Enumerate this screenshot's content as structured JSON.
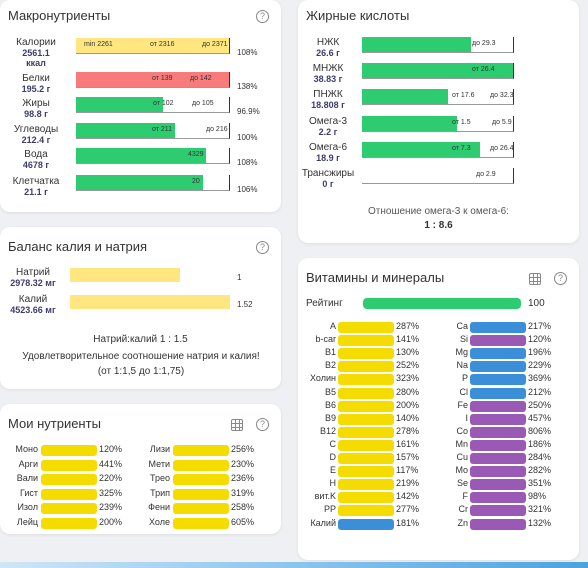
{
  "macros": {
    "title": "Макронутриенты",
    "rows": [
      {
        "name": "Калории",
        "value": "2561.1",
        "unit": "ккал",
        "marks": [
          "min 2261",
          "от 2316",
          "до 2371"
        ],
        "pct": "108%",
        "color": "#ffe680",
        "fill": 1.0
      },
      {
        "name": "Белки",
        "value": "195.2 г",
        "marks": [
          "от 139",
          "до 142"
        ],
        "pct": "138%",
        "color": "#f77b7b",
        "fill": 1.0
      },
      {
        "name": "Жиры",
        "value": "98.8 г",
        "marks": [
          "от 102",
          "до 105"
        ],
        "pct": "96.9%",
        "color": "#2ecc71",
        "fill": 0.57
      },
      {
        "name": "Углеводы",
        "value": "212.4 г",
        "marks": [
          "от 211",
          "до 216"
        ],
        "pct": "100%",
        "color": "#2ecc71",
        "fill": 0.65
      },
      {
        "name": "Вода",
        "value": "4678 г",
        "marks": [
          "4329"
        ],
        "pct": "108%",
        "color": "#2ecc71",
        "fill": 0.85
      },
      {
        "name": "Клетчатка",
        "value": "21.1 г",
        "marks": [
          "20"
        ],
        "pct": "106%",
        "color": "#2ecc71",
        "fill": 0.83
      }
    ]
  },
  "fatty": {
    "title": "Жирные кислоты",
    "rows": [
      {
        "name": "НЖК",
        "value": "26.6 г",
        "marks": [
          "до 29.3"
        ],
        "fill": 0.72
      },
      {
        "name": "МНЖК",
        "value": "38.83 г",
        "marks": [
          "от 26.4"
        ],
        "fill": 1.0
      },
      {
        "name": "ПНЖК",
        "value": "18.808 г",
        "marks": [
          "от 17.6",
          "до 32.3"
        ],
        "fill": 0.57
      },
      {
        "name": "Омега-3",
        "value": "2.2 г",
        "marks": [
          "от 1.5",
          "до 5.9"
        ],
        "fill": 0.63
      },
      {
        "name": "Омега-6",
        "value": "18.9 г",
        "marks": [
          "от 7.3",
          "до 26.4"
        ],
        "fill": 0.78
      },
      {
        "name": "Трансжиры",
        "value": "0 г",
        "marks": [
          "до 2.9"
        ],
        "fill": 0.0
      }
    ],
    "ratio_label": "Отношение омега-3 к омега-6:",
    "ratio_value": "1 : 8.6"
  },
  "balance": {
    "title": "Баланс калия и натрия",
    "rows": [
      {
        "name": "Натрий",
        "value": "2978.32 мг",
        "num": "1",
        "fill": 0.69
      },
      {
        "name": "Калий",
        "value": "4523.66 мг",
        "num": "1.52",
        "fill": 1.0
      }
    ],
    "ratio_text": "Натрий:калий 1 : 1.5",
    "desc": "Удовлетворительное соотношение натрия и калия! (от 1:1,5 до 1:1,75)"
  },
  "vitamins": {
    "title": "Витамины и минералы",
    "rating_label": "Рейтинг",
    "rating_value": "100",
    "left": [
      {
        "name": "A",
        "pct": "287%",
        "color": "#f5dc00"
      },
      {
        "name": "b-car",
        "pct": "141%",
        "color": "#f5dc00"
      },
      {
        "name": "B1",
        "pct": "130%",
        "color": "#f5dc00"
      },
      {
        "name": "B2",
        "pct": "252%",
        "color": "#f5dc00"
      },
      {
        "name": "Холин",
        "pct": "323%",
        "color": "#f5dc00"
      },
      {
        "name": "B5",
        "pct": "280%",
        "color": "#f5dc00"
      },
      {
        "name": "B6",
        "pct": "200%",
        "color": "#f5dc00"
      },
      {
        "name": "B9",
        "pct": "140%",
        "color": "#f5dc00"
      },
      {
        "name": "B12",
        "pct": "278%",
        "color": "#f5dc00"
      },
      {
        "name": "C",
        "pct": "161%",
        "color": "#f5dc00"
      },
      {
        "name": "D",
        "pct": "157%",
        "color": "#f5dc00"
      },
      {
        "name": "E",
        "pct": "117%",
        "color": "#f5dc00"
      },
      {
        "name": "H",
        "pct": "219%",
        "color": "#f5dc00"
      },
      {
        "name": "вит.K",
        "pct": "142%",
        "color": "#f5dc00"
      },
      {
        "name": "PP",
        "pct": "277%",
        "color": "#f5dc00"
      },
      {
        "name": "Калий",
        "pct": "181%",
        "color": "#3a8fd8"
      }
    ],
    "right": [
      {
        "name": "Ca",
        "pct": "217%",
        "color": "#3a8fd8"
      },
      {
        "name": "Si",
        "pct": "120%",
        "color": "#9b59b6"
      },
      {
        "name": "Mg",
        "pct": "196%",
        "color": "#3a8fd8"
      },
      {
        "name": "Na",
        "pct": "229%",
        "color": "#3a8fd8"
      },
      {
        "name": "P",
        "pct": "369%",
        "color": "#3a8fd8"
      },
      {
        "name": "Cl",
        "pct": "212%",
        "color": "#3a8fd8"
      },
      {
        "name": "Fe",
        "pct": "250%",
        "color": "#9b59b6"
      },
      {
        "name": "I",
        "pct": "457%",
        "color": "#9b59b6"
      },
      {
        "name": "Co",
        "pct": "806%",
        "color": "#9b59b6"
      },
      {
        "name": "Mn",
        "pct": "186%",
        "color": "#9b59b6"
      },
      {
        "name": "Cu",
        "pct": "284%",
        "color": "#9b59b6"
      },
      {
        "name": "Mo",
        "pct": "282%",
        "color": "#9b59b6"
      },
      {
        "name": "Se",
        "pct": "351%",
        "color": "#9b59b6"
      },
      {
        "name": "F",
        "pct": "98%",
        "color": "#9b59b6"
      },
      {
        "name": "Cr",
        "pct": "321%",
        "color": "#9b59b6"
      },
      {
        "name": "Zn",
        "pct": "132%",
        "color": "#9b59b6"
      }
    ]
  },
  "my": {
    "title": "Мои нутриенты",
    "left": [
      {
        "name": "Моно",
        "pct": "120%"
      },
      {
        "name": "Арги",
        "pct": "441%"
      },
      {
        "name": "Вали",
        "pct": "220%"
      },
      {
        "name": "Гист",
        "pct": "325%"
      },
      {
        "name": "Изол",
        "pct": "239%"
      },
      {
        "name": "Лейц",
        "pct": "200%"
      }
    ],
    "right": [
      {
        "name": "Лизи",
        "pct": "256%"
      },
      {
        "name": "Мети",
        "pct": "230%"
      },
      {
        "name": "Трео",
        "pct": "236%"
      },
      {
        "name": "Трип",
        "pct": "319%"
      },
      {
        "name": "Фени",
        "pct": "258%"
      },
      {
        "name": "Холе",
        "pct": "605%"
      }
    ]
  }
}
